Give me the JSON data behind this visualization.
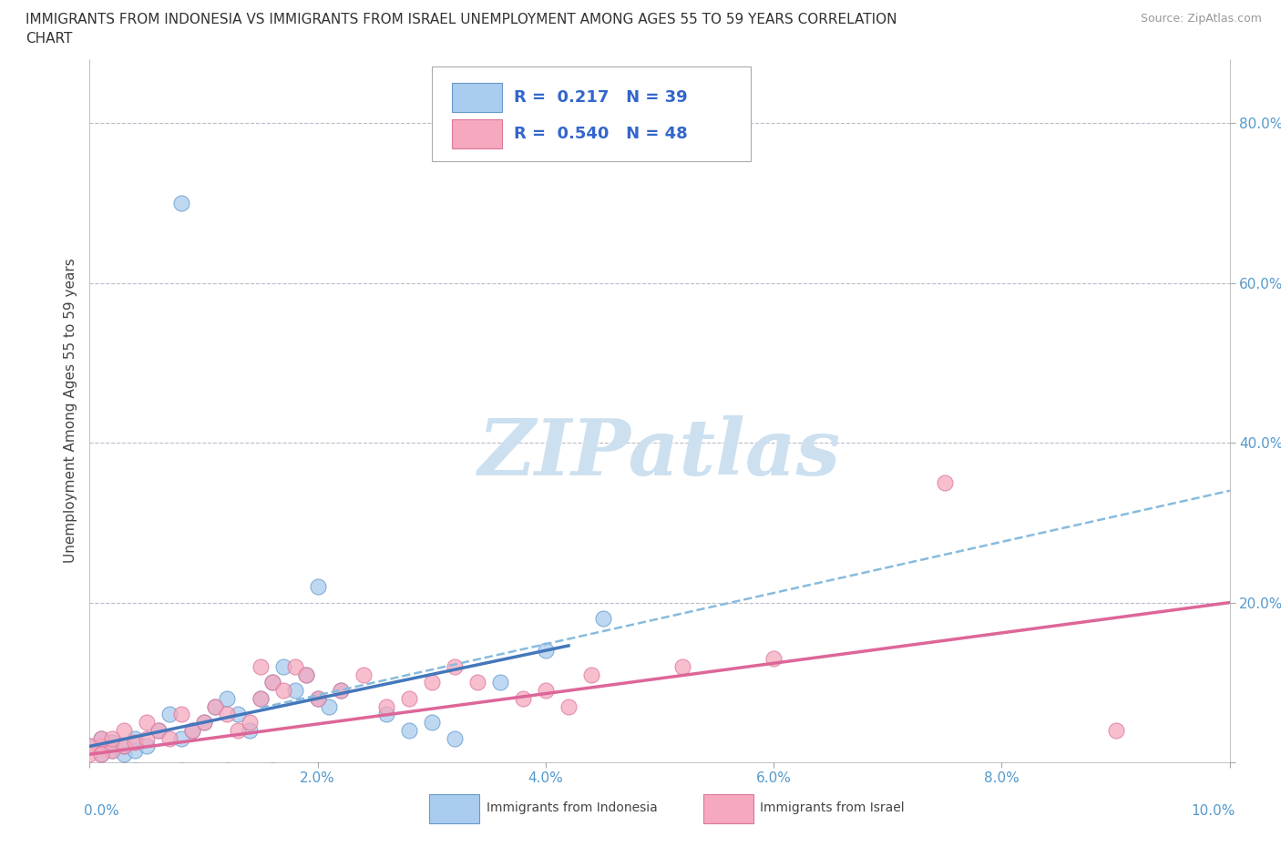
{
  "title_line1": "IMMIGRANTS FROM INDONESIA VS IMMIGRANTS FROM ISRAEL UNEMPLOYMENT AMONG AGES 55 TO 59 YEARS CORRELATION",
  "title_line2": "CHART",
  "source": "Source: ZipAtlas.com",
  "ylabel": "Unemployment Among Ages 55 to 59 years",
  "xlim": [
    0.0,
    0.1
  ],
  "ylim": [
    0.0,
    0.88
  ],
  "xticks": [
    0.0,
    0.02,
    0.04,
    0.06,
    0.08,
    0.1
  ],
  "xtick_labels_inner": [
    "",
    "2.0%",
    "4.0%",
    "6.0%",
    "8.0%",
    ""
  ],
  "xtick_outer_left": "0.0%",
  "xtick_outer_right": "10.0%",
  "yticks": [
    0.0,
    0.2,
    0.4,
    0.6,
    0.8
  ],
  "ytick_labels": [
    "",
    "20.0%",
    "40.0%",
    "60.0%",
    "80.0%"
  ],
  "indonesia_color": "#aaccee",
  "israel_color": "#f5a8be",
  "indonesia_edge": "#6699cc",
  "israel_edge": "#dd7799",
  "trend_indonesia_color": "#4477bb",
  "trend_israel_color": "#dd6699",
  "trend_israel_dashed_color": "#88bbdd",
  "grid_color": "#cccccc",
  "background": "#ffffff",
  "legend_R_indonesia": "0.217",
  "legend_N_indonesia": "39",
  "legend_R_israel": "0.540",
  "legend_N_israel": "48",
  "legend_text_color": "#3366cc",
  "watermark_color": "#cce0f0",
  "tick_color": "#5599cc"
}
